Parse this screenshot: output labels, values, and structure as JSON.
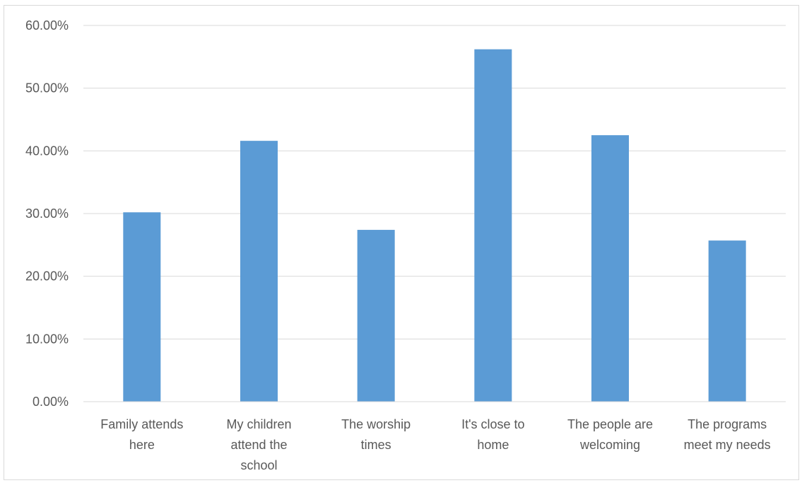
{
  "chart_data": {
    "type": "bar",
    "title": "",
    "xlabel": "",
    "ylabel": "",
    "ylim": [
      0,
      0.6
    ],
    "y_ticks": [
      "0.00%",
      "10.00%",
      "20.00%",
      "30.00%",
      "40.00%",
      "50.00%",
      "60.00%"
    ],
    "grid": true,
    "legend": "none",
    "bar_color": "#5b9bd5",
    "categories": [
      [
        "Family attends",
        "here"
      ],
      [
        "My children",
        "attend the",
        "school"
      ],
      [
        "The worship",
        "times"
      ],
      [
        "It's close to",
        "home"
      ],
      [
        "The people are",
        "welcoming"
      ],
      [
        "The programs",
        "meet my needs"
      ]
    ],
    "values": [
      0.302,
      0.416,
      0.274,
      0.562,
      0.425,
      0.257
    ]
  }
}
